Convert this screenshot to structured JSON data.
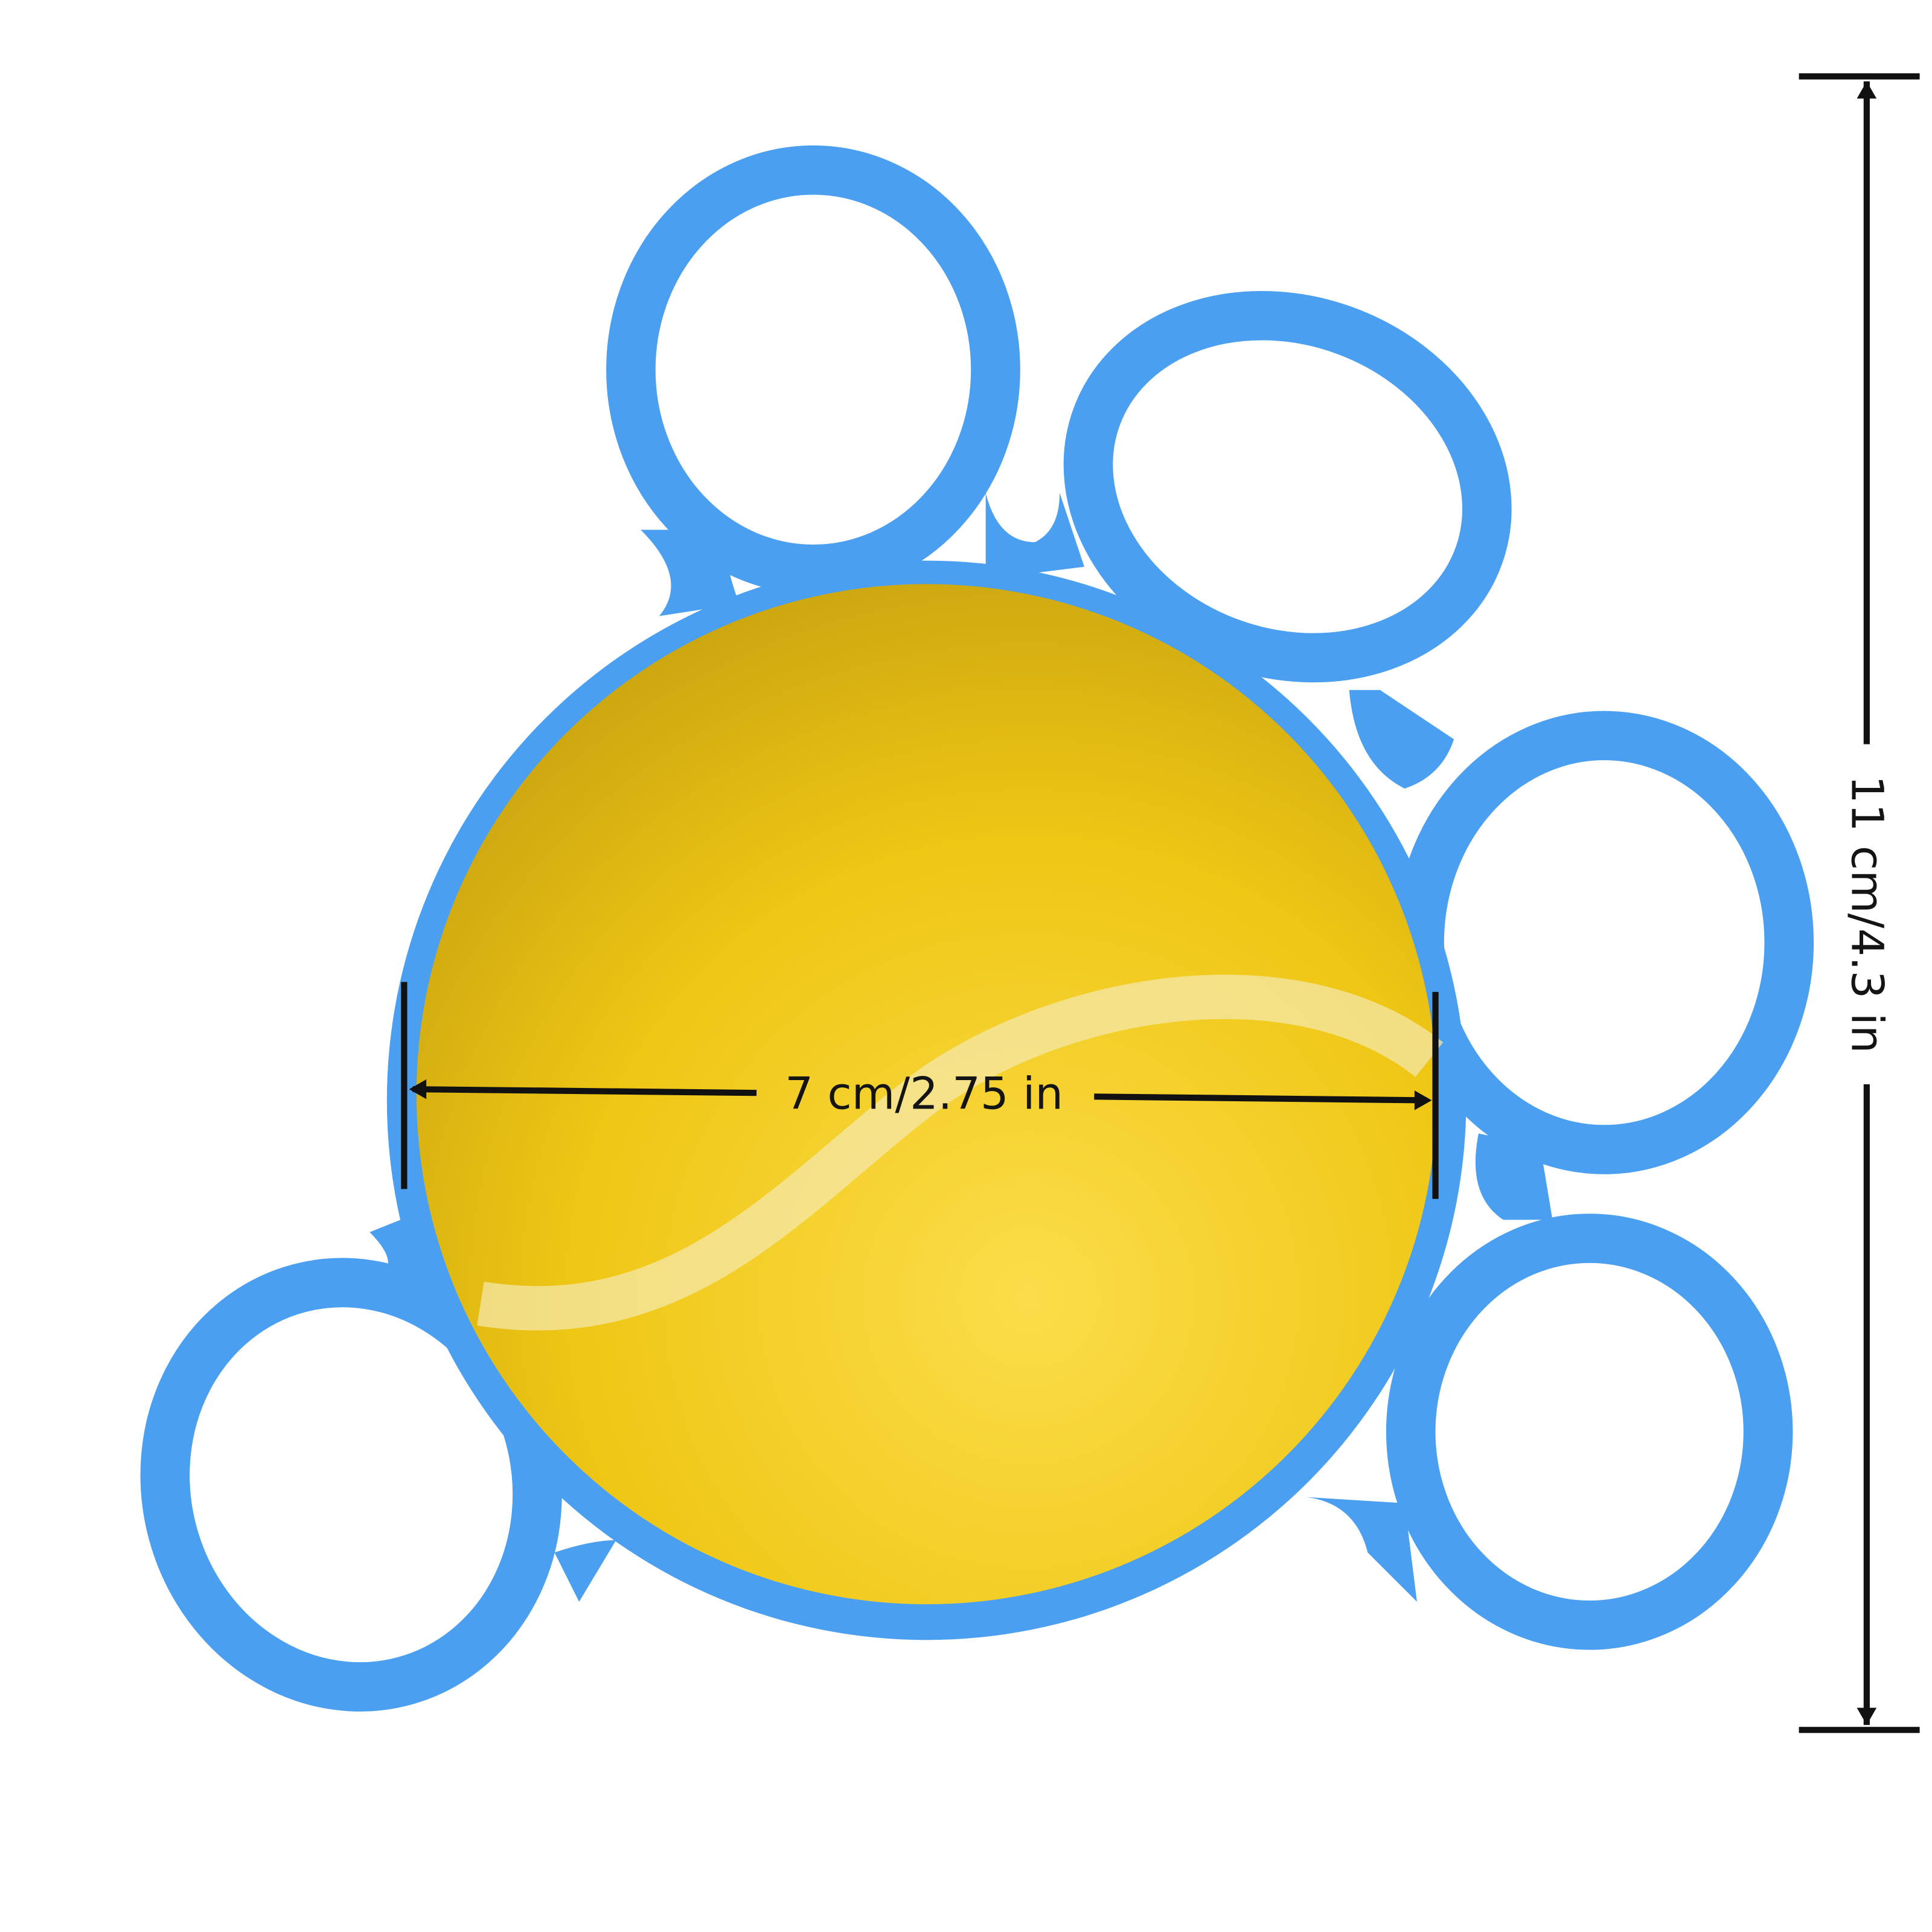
{
  "product": {
    "width_label": "7 cm/2.75 in",
    "height_label": "11 cm/4.3 in",
    "colors": {
      "band": "#4a9ff0",
      "ball": "#f0c814",
      "seam": "#f4e7a8",
      "dimension_line": "#111111"
    }
  }
}
